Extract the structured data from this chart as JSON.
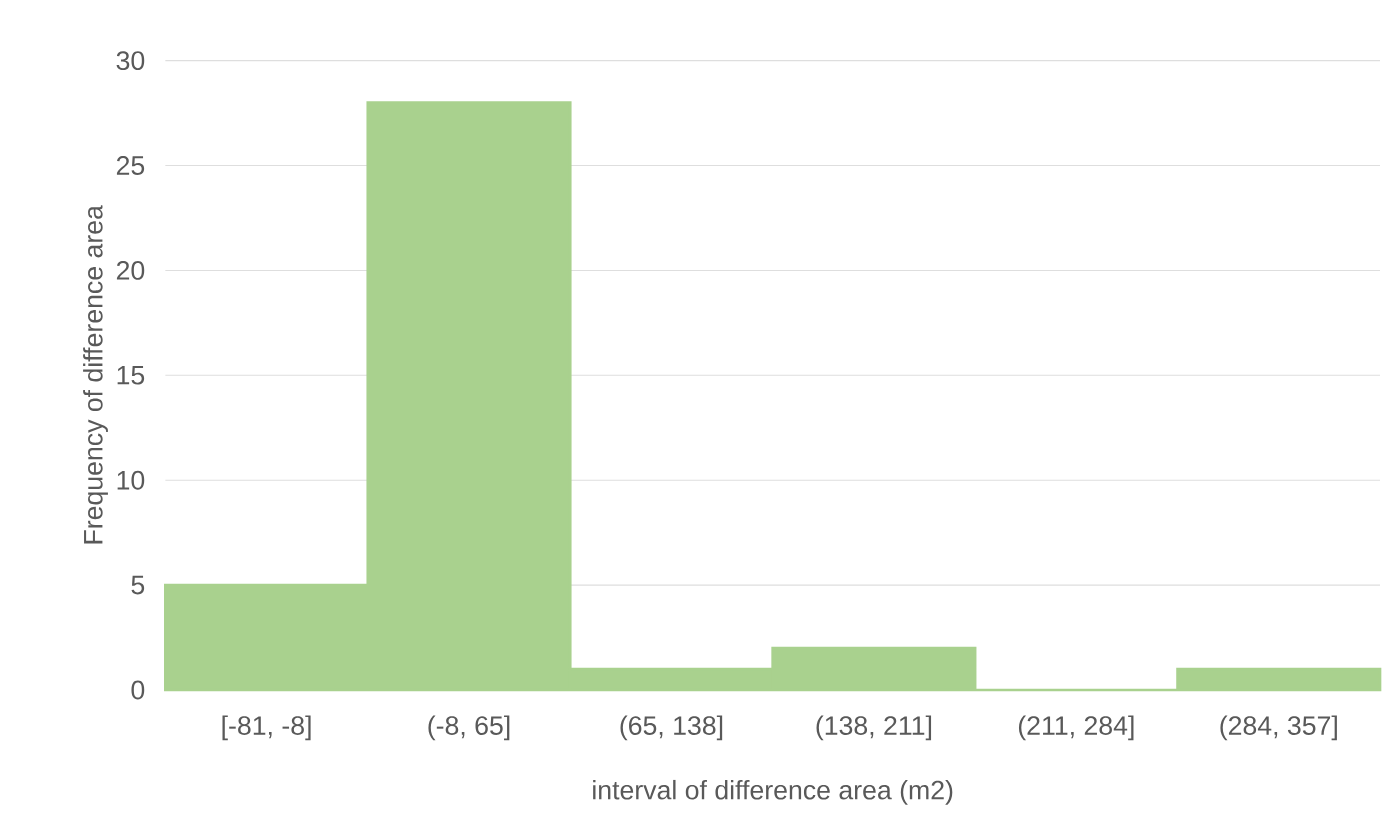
{
  "chart_data": {
    "type": "bar",
    "xlabel": "interval of difference area (m2)",
    "ylabel": "Frequency of difference area",
    "categories": [
      "[-81, -8]",
      "(-8, 65]",
      "(65, 138]",
      "(138, 211]",
      "(211, 284]",
      "(284, 357]"
    ],
    "values": [
      5,
      28,
      1,
      2,
      0,
      1
    ],
    "color": "#a9d18e",
    "ylim": [
      0,
      30
    ],
    "yticks": [
      0,
      5,
      10,
      15,
      20,
      25,
      30
    ],
    "grid": "y"
  }
}
